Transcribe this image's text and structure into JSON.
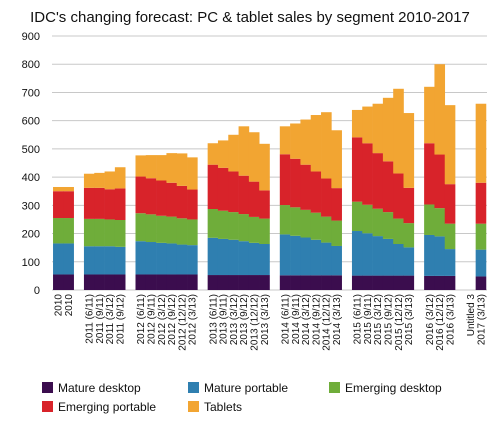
{
  "chart_data": {
    "type": "bar",
    "stacked": true,
    "title": "IDC's changing forecast: PC & tablet sales by segment 2010-2017",
    "ylim": [
      0,
      900
    ],
    "yticks": [
      0,
      100,
      200,
      300,
      400,
      500,
      600,
      700,
      800,
      900
    ],
    "grid": true,
    "legend_position": "bottom",
    "categories": [
      "2010",
      "2010",
      "2011 (6/11)",
      "2011 (9/11)",
      "2011 (3/12)",
      "2011 (9/12)",
      "2012 (6/11)",
      "2012 (9/11)",
      "2012 (3/12)",
      "2012 (9/12)",
      "2012 (12/12)",
      "2012 (3/13)",
      "2013 (6/11)",
      "2013 (9/11)",
      "2013 (3/12)",
      "2013 (9/12)",
      "2013 (12/12)",
      "2013 (3/13)",
      "2014 (6/11)",
      "2014 (9/11)",
      "2014 (3/12)",
      "2014 (9/12)",
      "2014 (12/12)",
      "2014 (3/13)",
      "2015 (6/11)",
      "2015 (9/11)",
      "2015 (3/12)",
      "2015 (9/12)",
      "2015 (12/12)",
      "2015 (3/13)",
      "2016 (3/12)",
      "2016 (12/12)",
      "2016 (3/13)",
      "Untitled 3",
      "2017 (3/13)"
    ],
    "groups": [
      2,
      4,
      6,
      6,
      6,
      6,
      3,
      2
    ],
    "series": [
      {
        "name": "Mature desktop",
        "color": "#3b0d4e",
        "values": [
          55,
          55,
          55,
          55,
          55,
          55,
          55,
          55,
          55,
          55,
          55,
          55,
          53,
          53,
          53,
          53,
          53,
          53,
          52,
          52,
          52,
          52,
          52,
          52,
          51,
          51,
          51,
          51,
          51,
          51,
          50,
          50,
          50,
          0,
          48
        ]
      },
      {
        "name": "Mature portable",
        "color": "#2f7fb0",
        "values": [
          110,
          110,
          100,
          100,
          100,
          98,
          118,
          115,
          112,
          110,
          106,
          104,
          132,
          128,
          125,
          120,
          114,
          110,
          145,
          140,
          134,
          126,
          116,
          104,
          158,
          150,
          140,
          130,
          112,
          100,
          145,
          140,
          95,
          0,
          95
        ]
      },
      {
        "name": "Emerging desktop",
        "color": "#6fad3a",
        "values": [
          90,
          90,
          97,
          97,
          95,
          95,
          99,
          98,
          96,
          95,
          93,
          91,
          102,
          100,
          98,
          96,
          92,
          90,
          104,
          101,
          98,
          96,
          92,
          90,
          104,
          101,
          97,
          95,
          90,
          86,
          108,
          100,
          90,
          0,
          92
        ]
      },
      {
        "name": "Emerging portable",
        "color": "#d8232a",
        "values": [
          95,
          95,
          110,
          110,
          107,
          112,
          130,
          128,
          125,
          120,
          115,
          106,
          157,
          152,
          144,
          136,
          125,
          100,
          180,
          172,
          160,
          146,
          135,
          115,
          228,
          218,
          197,
          180,
          160,
          125,
          217,
          190,
          140,
          0,
          145
        ]
      },
      {
        "name": "Tablets",
        "color": "#f2a532",
        "values": [
          15,
          15,
          50,
          53,
          63,
          75,
          75,
          82,
          90,
          105,
          115,
          114,
          76,
          97,
          130,
          175,
          175,
          165,
          99,
          125,
          160,
          200,
          235,
          205,
          97,
          130,
          175,
          225,
          300,
          265,
          200,
          320,
          280,
          0,
          280
        ]
      }
    ]
  }
}
